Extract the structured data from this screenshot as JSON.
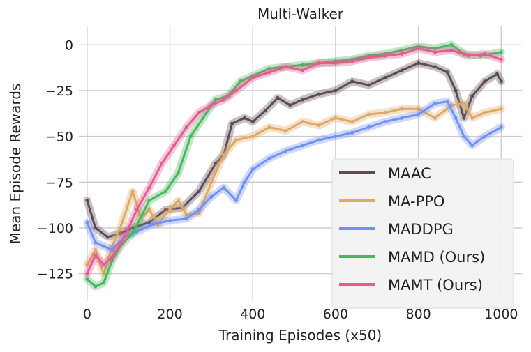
{
  "chart_data": {
    "type": "line",
    "title": "Multi-Walker",
    "xlabel": "Training Episodes (x50)",
    "ylabel": "Mean Episode Rewards",
    "xlim": [
      -20,
      1050
    ],
    "ylim": [
      -140,
      10
    ],
    "xticks": [
      0,
      200,
      400,
      600,
      800,
      1000
    ],
    "yticks": [
      0,
      -25,
      -50,
      -75,
      -100,
      -125
    ],
    "xtick_labels": [
      "0",
      "200",
      "400",
      "600",
      "800",
      "1000"
    ],
    "ytick_labels": [
      "0",
      "−25",
      "−50",
      "−75",
      "−100",
      "−125"
    ],
    "grid": true,
    "legend_position": "lower-right",
    "series": [
      {
        "name": "MAAC",
        "color": "#5b4b55",
        "x": [
          0,
          20,
          50,
          80,
          110,
          150,
          190,
          230,
          270,
          310,
          330,
          350,
          380,
          400,
          430,
          460,
          490,
          520,
          560,
          600,
          640,
          680,
          720,
          760,
          800,
          840,
          870,
          890,
          910,
          930,
          960,
          990,
          1000
        ],
        "y": [
          -85,
          -100,
          -105,
          -103,
          -100,
          -97,
          -90,
          -89,
          -80,
          -65,
          -60,
          -43,
          -40,
          -42,
          -36,
          -29,
          -33,
          -30,
          -27,
          -25,
          -20,
          -22,
          -18,
          -14,
          -10,
          -12,
          -15,
          -25,
          -40,
          -28,
          -20,
          -16,
          -20
        ]
      },
      {
        "name": "MA-PPO",
        "color": "#dfa866",
        "x": [
          0,
          20,
          40,
          60,
          80,
          110,
          130,
          150,
          170,
          200,
          220,
          240,
          270,
          300,
          330,
          360,
          400,
          440,
          480,
          520,
          560,
          600,
          640,
          680,
          720,
          760,
          800,
          840,
          880,
          910,
          930,
          960,
          1000
        ],
        "y": [
          -120,
          -112,
          -125,
          -110,
          -100,
          -80,
          -95,
          -90,
          -98,
          -90,
          -85,
          -93,
          -92,
          -75,
          -60,
          -52,
          -50,
          -45,
          -47,
          -42,
          -44,
          -40,
          -42,
          -38,
          -37,
          -35,
          -35,
          -40,
          -33,
          -32,
          -40,
          -37,
          -35
        ]
      },
      {
        "name": "MADDPG",
        "color": "#7391f5",
        "x": [
          0,
          20,
          40,
          60,
          90,
          120,
          160,
          200,
          240,
          270,
          300,
          330,
          360,
          380,
          400,
          440,
          480,
          520,
          560,
          600,
          640,
          680,
          720,
          760,
          800,
          840,
          870,
          890,
          910,
          930,
          960,
          1000
        ],
        "y": [
          -97,
          -108,
          -110,
          -112,
          -105,
          -102,
          -98,
          -96,
          -95,
          -90,
          -83,
          -78,
          -85,
          -75,
          -68,
          -62,
          -58,
          -55,
          -52,
          -50,
          -48,
          -45,
          -42,
          -40,
          -38,
          -32,
          -31,
          -40,
          -50,
          -55,
          -50,
          -45
        ]
      },
      {
        "name": "MAMD (Ours)",
        "color": "#4ab661",
        "x": [
          0,
          20,
          40,
          60,
          80,
          110,
          150,
          190,
          220,
          250,
          280,
          310,
          340,
          370,
          400,
          440,
          480,
          520,
          560,
          600,
          640,
          680,
          720,
          760,
          800,
          840,
          880,
          910,
          950,
          1000
        ],
        "y": [
          -128,
          -132,
          -130,
          -118,
          -110,
          -103,
          -85,
          -80,
          -70,
          -50,
          -40,
          -30,
          -28,
          -20,
          -17,
          -13,
          -12,
          -11,
          -10,
          -9,
          -8,
          -6,
          -5,
          -3,
          -1,
          -2,
          0,
          -5,
          -6,
          -4
        ]
      },
      {
        "name": "MAMT (Ours)",
        "color": "#e35d93",
        "x": [
          0,
          20,
          40,
          60,
          90,
          120,
          150,
          180,
          210,
          240,
          270,
          300,
          330,
          360,
          400,
          440,
          480,
          520,
          560,
          600,
          640,
          680,
          720,
          760,
          800,
          840,
          880,
          920,
          960,
          1000
        ],
        "y": [
          -125,
          -115,
          -120,
          -116,
          -105,
          -90,
          -78,
          -65,
          -55,
          -45,
          -37,
          -33,
          -30,
          -25,
          -18,
          -15,
          -12,
          -14,
          -10,
          -10,
          -9,
          -7,
          -6,
          -5,
          -2,
          -4,
          -3,
          -6,
          -5,
          -8
        ]
      }
    ]
  }
}
